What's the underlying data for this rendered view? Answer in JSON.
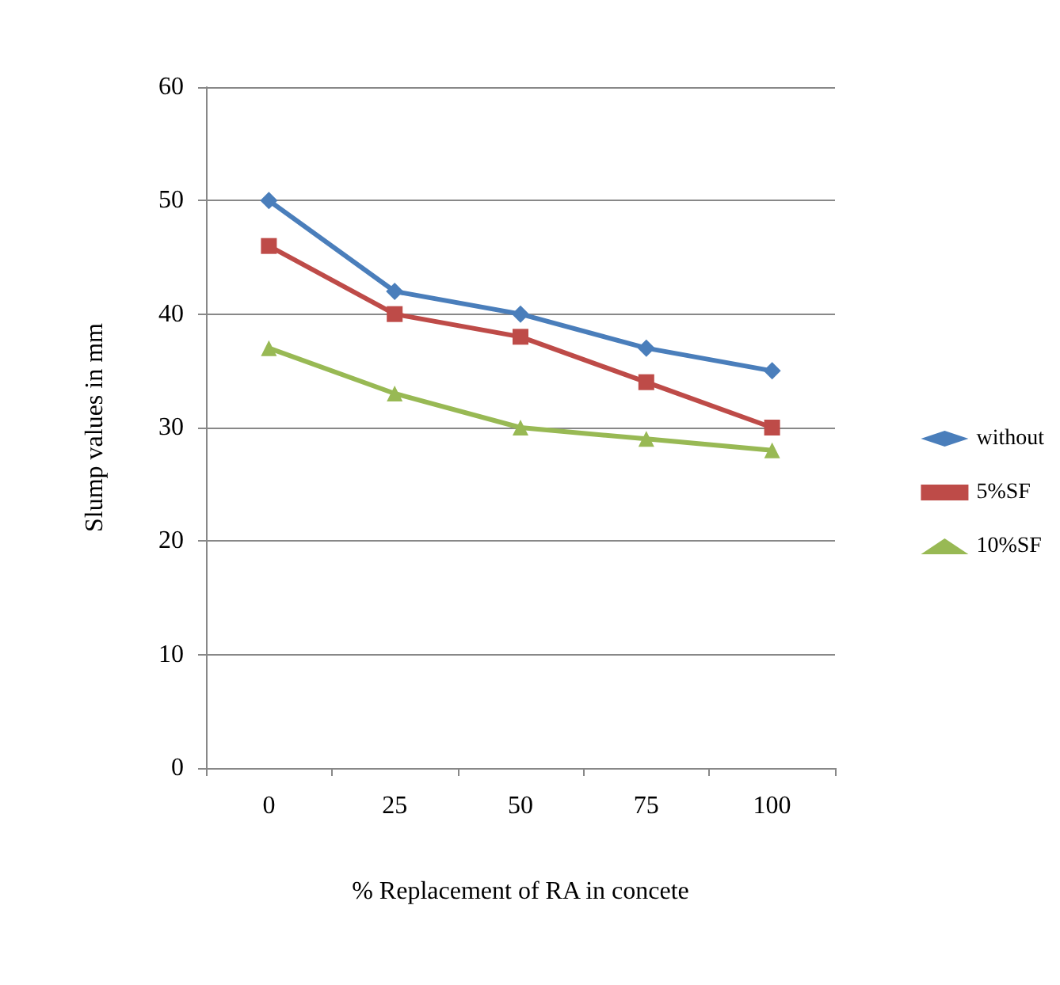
{
  "chart_data": {
    "type": "line",
    "xlabel": "% Replacement of RA in concete",
    "ylabel": "Slump values in mm",
    "categories": [
      "0",
      "25",
      "50",
      "75",
      "100"
    ],
    "series": [
      {
        "name": "without",
        "color": "#4a7ebb",
        "marker": "diamond",
        "values": [
          50,
          42,
          40,
          37,
          35
        ]
      },
      {
        "name": "5%SF",
        "color": "#be4b48",
        "marker": "square",
        "values": [
          46,
          40,
          38,
          34,
          30
        ]
      },
      {
        "name": "10%SF",
        "color": "#98b954",
        "marker": "triangle",
        "values": [
          37,
          33,
          30,
          29,
          28
        ]
      }
    ],
    "ylim": [
      0,
      60
    ],
    "yticks": [
      0,
      10,
      20,
      30,
      40,
      50,
      60
    ],
    "grid": "y",
    "legend": "right",
    "line_style": "solid"
  }
}
